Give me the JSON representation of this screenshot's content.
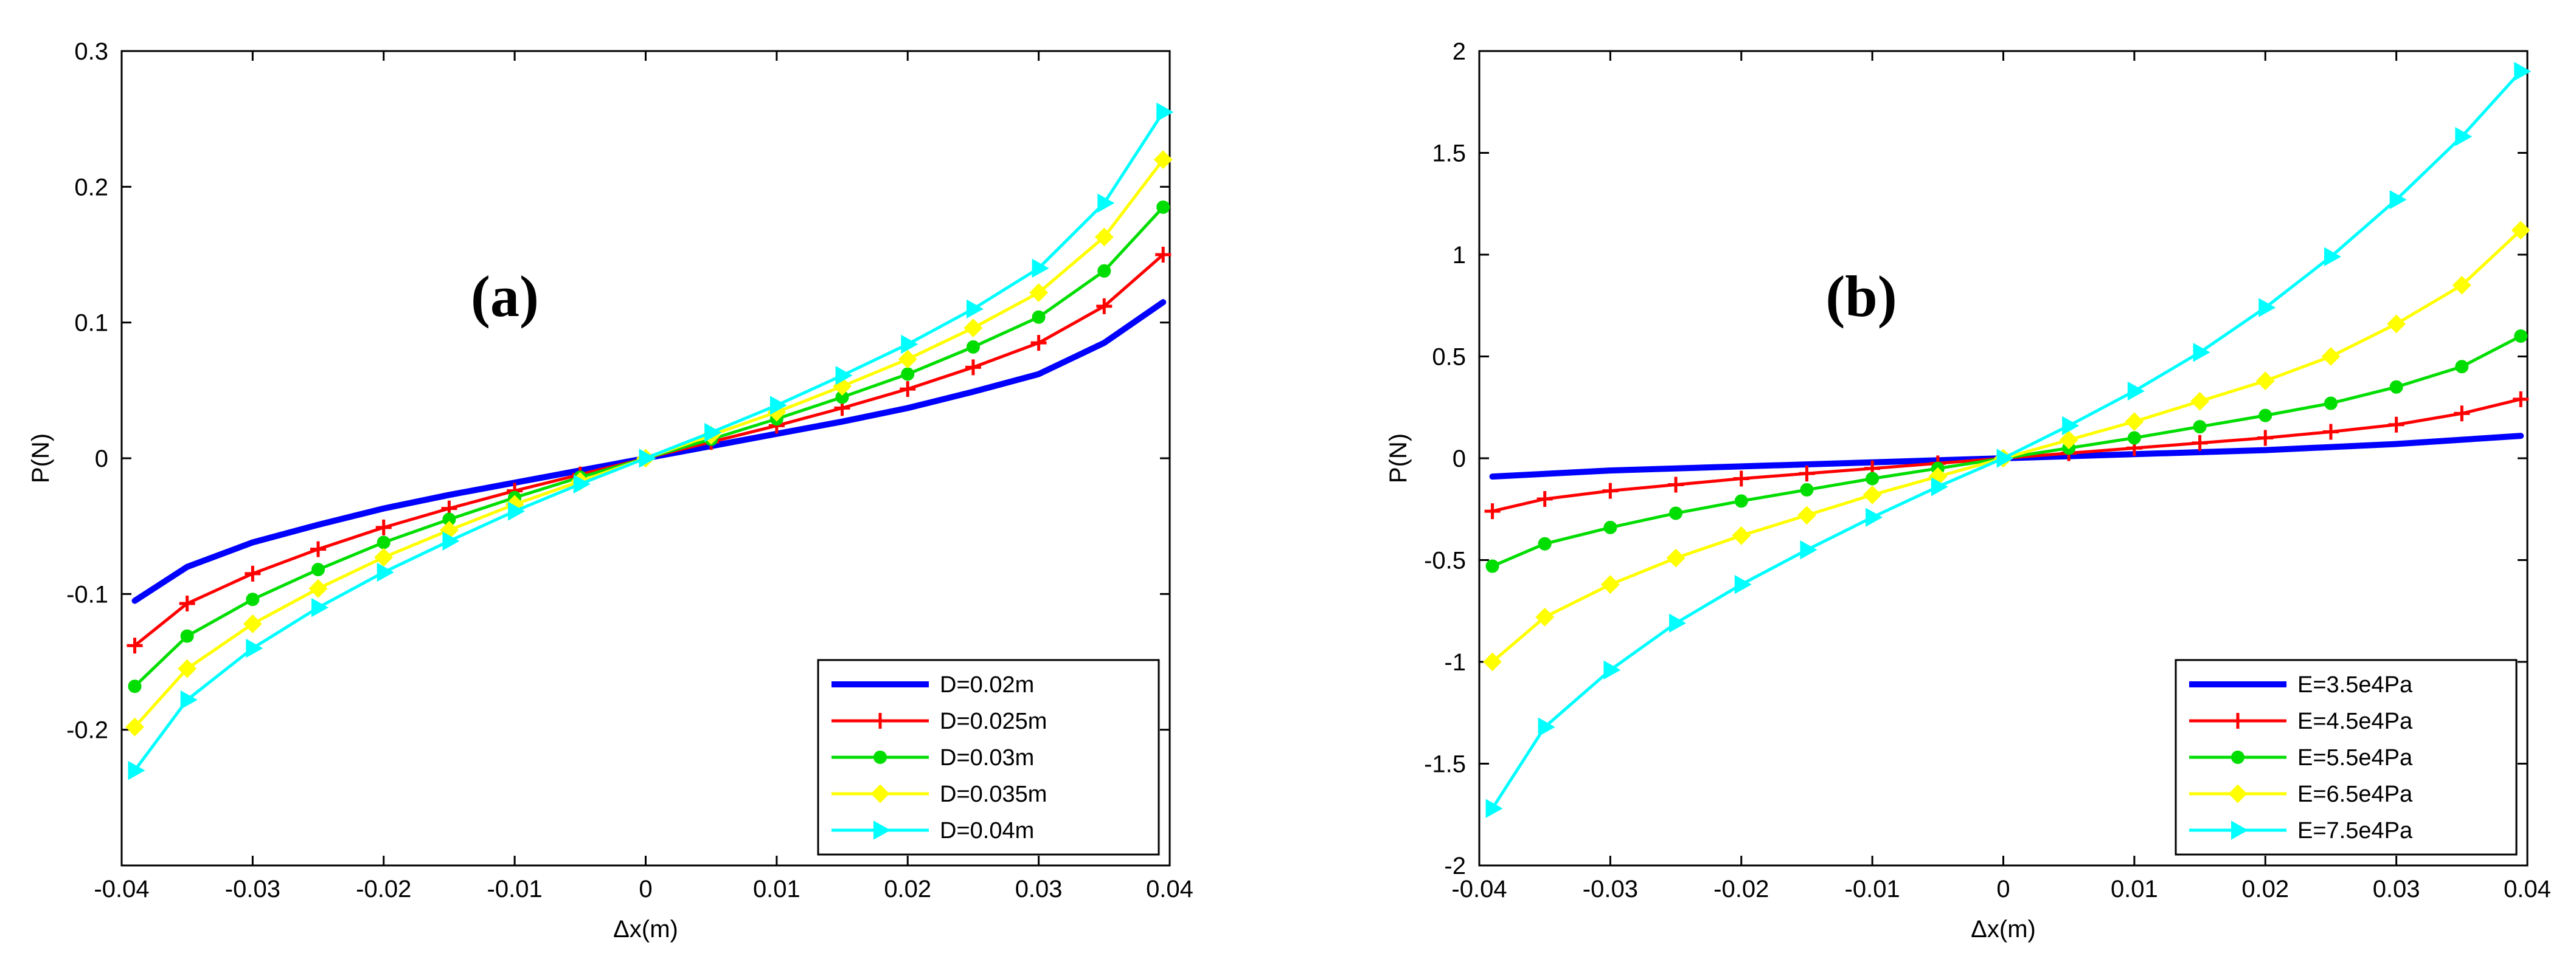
{
  "chart_data": [
    {
      "type": "line",
      "panel_label": "(a)",
      "xlabel": "Δx(m)",
      "ylabel": "P(N)",
      "xlim": [
        -0.04,
        0.04
      ],
      "ylim": [
        -0.3,
        0.3
      ],
      "xticks": [
        -0.04,
        -0.03,
        -0.02,
        -0.01,
        0,
        0.01,
        0.02,
        0.03,
        0.04
      ],
      "xtick_labels": [
        "-0.04",
        "-0.03",
        "-0.02",
        "-0.01",
        "0",
        "0.01",
        "0.02",
        "0.03",
        "0.04"
      ],
      "yticks": [
        -0.2,
        -0.1,
        0,
        0.1,
        0.2,
        0.3
      ],
      "ytick_labels": [
        "-0.2",
        "-0.1",
        "0",
        "0.1",
        "0.2",
        "0.3"
      ],
      "legend_position": "bottom-right",
      "series": [
        {
          "name": "D=0.02m",
          "color": "#0000ff",
          "marker": "none",
          "x": [
            -0.039,
            -0.035,
            -0.03,
            -0.025,
            -0.02,
            -0.015,
            -0.01,
            -0.005,
            0,
            0.005,
            0.01,
            0.015,
            0.02,
            0.025,
            0.03,
            0.035,
            0.0395
          ],
          "y": [
            -0.105,
            -0.08,
            -0.062,
            -0.049,
            -0.037,
            -0.027,
            -0.018,
            -0.009,
            0,
            0.009,
            0.018,
            0.027,
            0.037,
            0.049,
            0.062,
            0.085,
            0.115
          ]
        },
        {
          "name": "D=0.025m",
          "color": "#ff0000",
          "marker": "plus",
          "x": [
            -0.039,
            -0.035,
            -0.03,
            -0.025,
            -0.02,
            -0.015,
            -0.01,
            -0.005,
            0,
            0.005,
            0.01,
            0.015,
            0.02,
            0.025,
            0.03,
            0.035,
            0.0395
          ],
          "y": [
            -0.138,
            -0.107,
            -0.085,
            -0.067,
            -0.051,
            -0.037,
            -0.024,
            -0.012,
            0,
            0.012,
            0.024,
            0.037,
            0.051,
            0.067,
            0.085,
            0.112,
            0.15
          ]
        },
        {
          "name": "D=0.03m",
          "color": "#00dd00",
          "marker": "circle",
          "x": [
            -0.039,
            -0.035,
            -0.03,
            -0.025,
            -0.02,
            -0.015,
            -0.01,
            -0.005,
            0,
            0.005,
            0.01,
            0.015,
            0.02,
            0.025,
            0.03,
            0.035,
            0.0395
          ],
          "y": [
            -0.168,
            -0.131,
            -0.104,
            -0.082,
            -0.062,
            -0.045,
            -0.029,
            -0.014,
            0,
            0.014,
            0.029,
            0.045,
            0.062,
            0.082,
            0.104,
            0.138,
            0.185
          ]
        },
        {
          "name": "D=0.035m",
          "color": "#ffff00",
          "marker": "diamond",
          "x": [
            -0.039,
            -0.035,
            -0.03,
            -0.025,
            -0.02,
            -0.015,
            -0.01,
            -0.005,
            0,
            0.005,
            0.01,
            0.015,
            0.02,
            0.025,
            0.03,
            0.035,
            0.0395
          ],
          "y": [
            -0.198,
            -0.155,
            -0.122,
            -0.096,
            -0.073,
            -0.053,
            -0.034,
            -0.017,
            0,
            0.017,
            0.034,
            0.053,
            0.073,
            0.096,
            0.122,
            0.163,
            0.22
          ]
        },
        {
          "name": "D=0.04m",
          "color": "#00ffff",
          "marker": "triangle",
          "x": [
            -0.039,
            -0.035,
            -0.03,
            -0.025,
            -0.02,
            -0.015,
            -0.01,
            -0.005,
            0,
            0.005,
            0.01,
            0.015,
            0.02,
            0.025,
            0.03,
            0.035,
            0.0395
          ],
          "y": [
            -0.23,
            -0.178,
            -0.14,
            -0.11,
            -0.084,
            -0.061,
            -0.039,
            -0.019,
            0,
            0.019,
            0.039,
            0.061,
            0.084,
            0.11,
            0.14,
            0.188,
            0.255
          ]
        }
      ]
    },
    {
      "type": "line",
      "panel_label": "(b)",
      "xlabel": "Δx(m)",
      "ylabel": "P(N)",
      "xlim": [
        -0.04,
        0.04
      ],
      "ylim": [
        -2,
        2
      ],
      "xticks": [
        -0.04,
        -0.03,
        -0.02,
        -0.01,
        0,
        0.01,
        0.02,
        0.03,
        0.04
      ],
      "xtick_labels": [
        "-0.04",
        "-0.03",
        "-0.02",
        "-0.01",
        "0",
        "0.01",
        "0.02",
        "0.03",
        "0.04"
      ],
      "yticks": [
        -2,
        -1.5,
        -1,
        -0.5,
        0,
        0.5,
        1,
        1.5,
        2
      ],
      "ytick_labels": [
        "-2",
        "-1.5",
        "-1",
        "-0.5",
        "0",
        "0.5",
        "1",
        "1.5",
        "2"
      ],
      "legend_position": "bottom-right",
      "series": [
        {
          "name": "E=3.5e4Pa",
          "color": "#0000ff",
          "marker": "none",
          "x": [
            -0.039,
            -0.03,
            -0.02,
            -0.01,
            0,
            0.01,
            0.02,
            0.03,
            0.0395
          ],
          "y": [
            -0.09,
            -0.06,
            -0.04,
            -0.02,
            0,
            0.02,
            0.04,
            0.07,
            0.11
          ]
        },
        {
          "name": "E=4.5e4Pa",
          "color": "#ff0000",
          "marker": "plus",
          "x": [
            -0.039,
            -0.035,
            -0.03,
            -0.025,
            -0.02,
            -0.015,
            -0.01,
            -0.005,
            0,
            0.005,
            0.01,
            0.015,
            0.02,
            0.025,
            0.03,
            0.035,
            0.0395
          ],
          "y": [
            -0.26,
            -0.2,
            -0.16,
            -0.13,
            -0.1,
            -0.075,
            -0.05,
            -0.025,
            0,
            0.025,
            0.05,
            0.075,
            0.1,
            0.13,
            0.165,
            0.22,
            0.29
          ]
        },
        {
          "name": "E=5.5e4Pa",
          "color": "#00dd00",
          "marker": "circle",
          "x": [
            -0.039,
            -0.035,
            -0.03,
            -0.025,
            -0.02,
            -0.015,
            -0.01,
            -0.005,
            0,
            0.005,
            0.01,
            0.015,
            0.02,
            0.025,
            0.03,
            0.035,
            0.0395
          ],
          "y": [
            -0.53,
            -0.42,
            -0.34,
            -0.27,
            -0.21,
            -0.155,
            -0.1,
            -0.05,
            0,
            0.05,
            0.1,
            0.155,
            0.21,
            0.27,
            0.35,
            0.45,
            0.6
          ]
        },
        {
          "name": "E=6.5e4Pa",
          "color": "#ffff00",
          "marker": "diamond",
          "x": [
            -0.039,
            -0.035,
            -0.03,
            -0.025,
            -0.02,
            -0.015,
            -0.01,
            -0.005,
            0,
            0.005,
            0.01,
            0.015,
            0.02,
            0.025,
            0.03,
            0.035,
            0.0395
          ],
          "y": [
            -1.0,
            -0.78,
            -0.62,
            -0.49,
            -0.38,
            -0.28,
            -0.18,
            -0.09,
            0,
            0.09,
            0.18,
            0.28,
            0.38,
            0.5,
            0.66,
            0.85,
            1.12
          ]
        },
        {
          "name": "E=7.5e4Pa",
          "color": "#00ffff",
          "marker": "triangle",
          "x": [
            -0.039,
            -0.035,
            -0.03,
            -0.025,
            -0.02,
            -0.015,
            -0.01,
            -0.005,
            0,
            0.005,
            0.01,
            0.015,
            0.02,
            0.025,
            0.03,
            0.035,
            0.0395
          ],
          "y": [
            -1.72,
            -1.32,
            -1.04,
            -0.81,
            -0.62,
            -0.45,
            -0.29,
            -0.14,
            0,
            0.16,
            0.33,
            0.52,
            0.74,
            0.99,
            1.27,
            1.58,
            1.9
          ]
        }
      ]
    }
  ]
}
